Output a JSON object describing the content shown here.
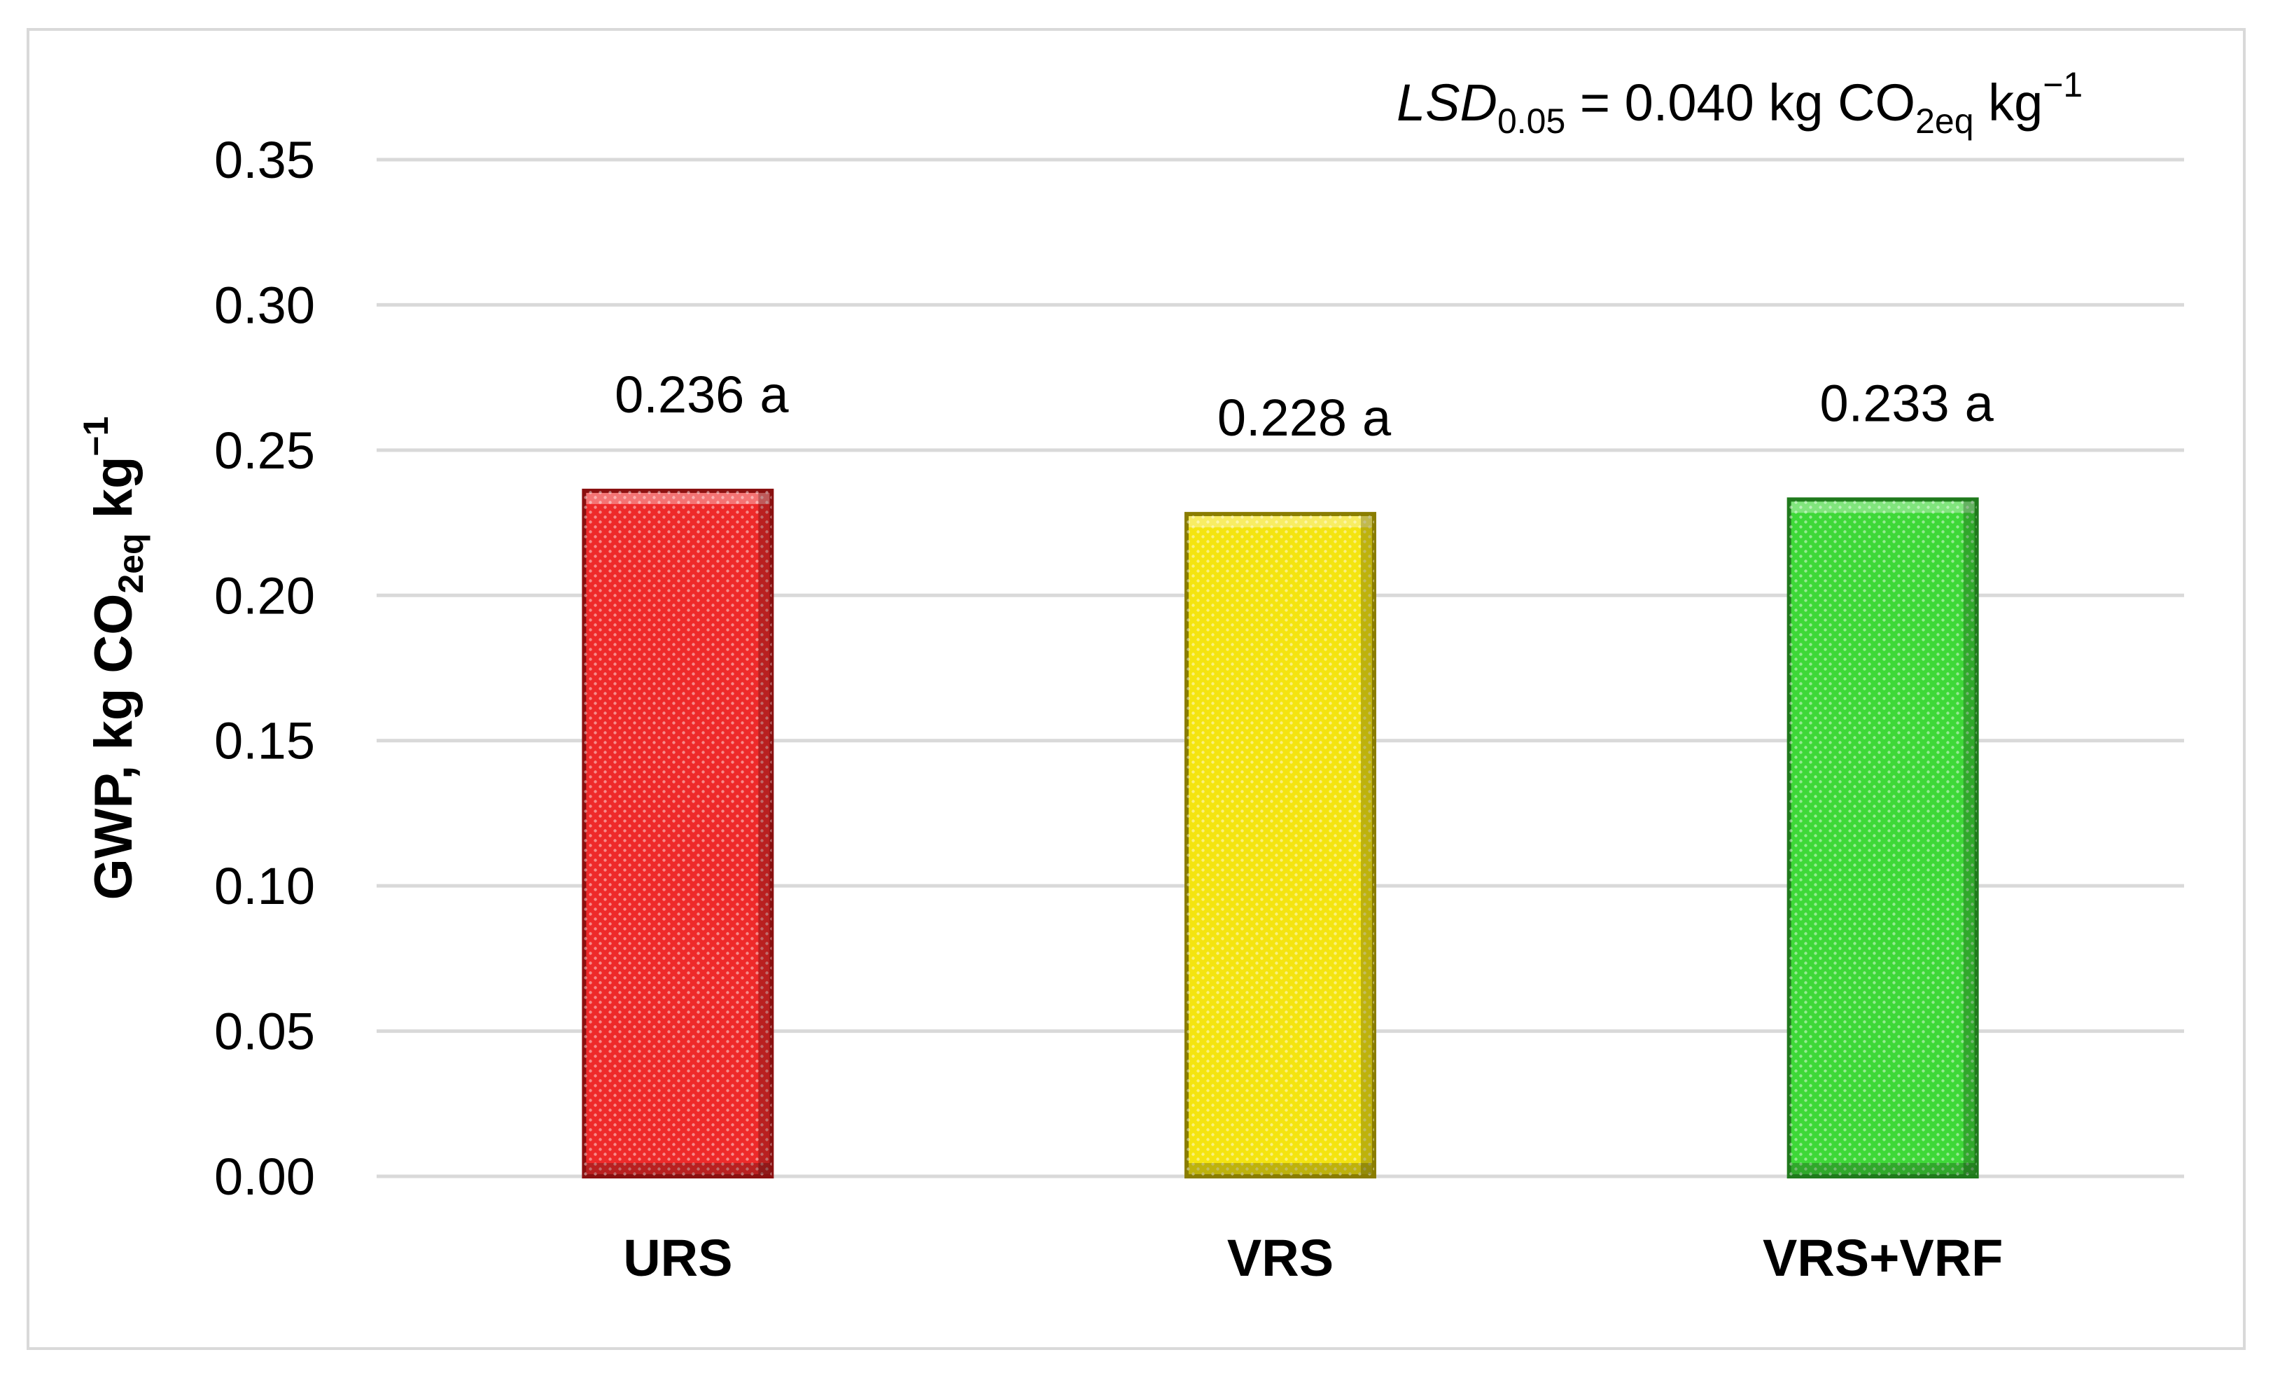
{
  "chart_data": {
    "type": "bar",
    "categories": [
      "URS",
      "VRS",
      "VRS+VRF"
    ],
    "values": [
      0.236,
      0.228,
      0.233
    ],
    "data_labels": [
      "0.236",
      "0.228",
      "0.233"
    ],
    "significance_letters": [
      "a",
      "a",
      "a"
    ],
    "bar_colors": [
      "#ee2a2a",
      "#f4e410",
      "#3ed838"
    ],
    "bar_border_colors": [
      "#8a1010",
      "#8a7d00",
      "#1f7a1c"
    ],
    "ylim": [
      0,
      0.35
    ],
    "y_ticks": [
      "0.00",
      "0.05",
      "0.10",
      "0.15",
      "0.20",
      "0.25",
      "0.30",
      "0.35"
    ],
    "ylabel": {
      "main": "GWP, kg CO",
      "sub": "2eq",
      "unit": " kg",
      "sup": "−1"
    },
    "xlabel": "",
    "title": "",
    "grid": true,
    "gridline_color": "#d9d9d9",
    "annotation": {
      "lsd_prefix": "LSD",
      "lsd_sub": "0.05",
      "lsd_value": " = 0.040 kg CO",
      "co2_sub": "2eq",
      "unit": " kg",
      "unit_sup": "−1"
    }
  }
}
